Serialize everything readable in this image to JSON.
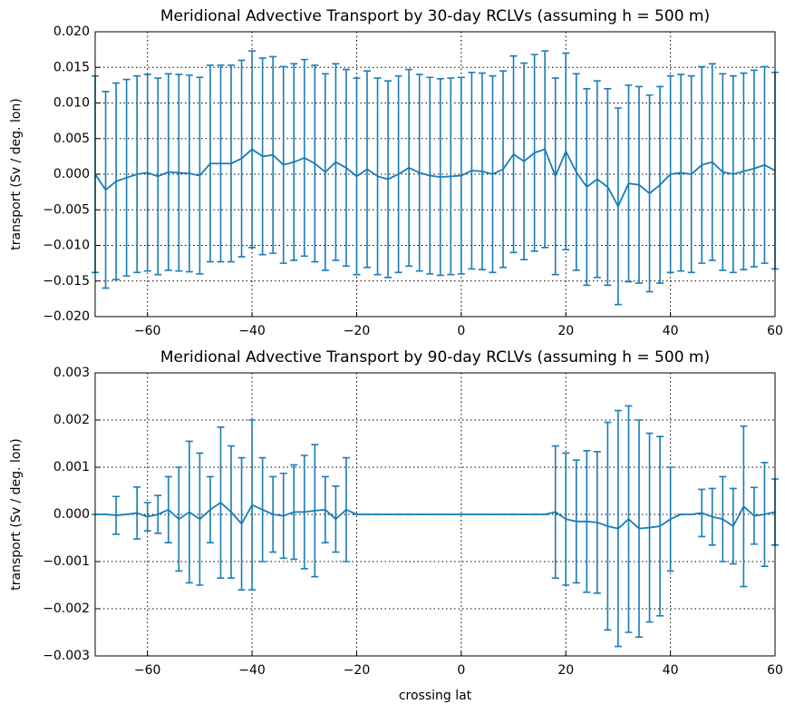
{
  "chart_data": [
    {
      "type": "errorbar",
      "title": "Meridional Advective Transport by 30-day RCLVs (assuming h = 500 m)",
      "ylabel": "transport (Sv / deg. lon)",
      "color": "#1a7db5",
      "grid": true,
      "x": [
        -70,
        -68,
        -66,
        -64,
        -62,
        -60,
        -58,
        -56,
        -54,
        -52,
        -50,
        -48,
        -46,
        -44,
        -42,
        -40,
        -38,
        -36,
        -34,
        -32,
        -30,
        -28,
        -26,
        -24,
        -22,
        -20,
        -18,
        -16,
        -14,
        -12,
        -10,
        -8,
        -6,
        -4,
        -2,
        0,
        2,
        4,
        6,
        8,
        10,
        12,
        14,
        16,
        18,
        20,
        22,
        24,
        26,
        28,
        30,
        32,
        34,
        36,
        38,
        40,
        42,
        44,
        46,
        48,
        50,
        52,
        54,
        56,
        58,
        60
      ],
      "values": [
        0.0,
        -0.0022,
        -0.001,
        -0.0005,
        0.0,
        0.0002,
        -0.0003,
        0.0003,
        0.0002,
        0.0001,
        -0.0002,
        0.0015,
        0.0015,
        0.0015,
        0.0022,
        0.0035,
        0.0025,
        0.0027,
        0.0013,
        0.0017,
        0.0023,
        0.0015,
        0.0003,
        0.0017,
        0.0009,
        -0.0003,
        0.0007,
        -0.0003,
        -0.0007,
        0.0,
        0.0009,
        0.0002,
        -0.0002,
        -0.0004,
        -0.0003,
        -0.0002,
        0.0005,
        0.0004,
        0.0,
        0.0007,
        0.0028,
        0.0018,
        0.003,
        0.0035,
        -0.0003,
        0.0032,
        0.0003,
        -0.0018,
        -0.0007,
        -0.0018,
        -0.0045,
        -0.0013,
        -0.0015,
        -0.0027,
        -0.0015,
        0.0,
        0.0002,
        0.0,
        0.0013,
        0.0017,
        0.0003,
        0.0,
        0.0004,
        0.0008,
        0.0013,
        0.0005
      ],
      "errors": [
        0.0138,
        0.0138,
        0.0138,
        0.0138,
        0.0138,
        0.0138,
        0.0138,
        0.0138,
        0.0138,
        0.0138,
        0.0138,
        0.0138,
        0.0138,
        0.0138,
        0.0138,
        0.0138,
        0.0138,
        0.0138,
        0.0138,
        0.0138,
        0.0138,
        0.0138,
        0.0138,
        0.0138,
        0.0138,
        0.0138,
        0.0138,
        0.0138,
        0.0138,
        0.0138,
        0.0138,
        0.0138,
        0.0138,
        0.0138,
        0.0138,
        0.0138,
        0.0138,
        0.0138,
        0.0138,
        0.0138,
        0.0138,
        0.0138,
        0.0138,
        0.0138,
        0.0138,
        0.0138,
        0.0138,
        0.0138,
        0.0138,
        0.0138,
        0.0138,
        0.0138,
        0.0138,
        0.0138,
        0.0138,
        0.0138,
        0.0138,
        0.0138,
        0.0138,
        0.0138,
        0.0138,
        0.0138,
        0.0138,
        0.0138,
        0.0138,
        0.0138
      ],
      "xlim": [
        -70,
        60
      ],
      "xticks": [
        {
          "value": -60,
          "label": "−60"
        },
        {
          "value": -40,
          "label": "−40"
        },
        {
          "value": -20,
          "label": "−20"
        },
        0,
        20,
        40,
        60
      ],
      "ylim": [
        -0.02,
        0.02
      ],
      "yticks": [
        {
          "value": -0.02,
          "label": "−0.020"
        },
        {
          "value": -0.015,
          "label": "−0.015"
        },
        {
          "value": -0.01,
          "label": "−0.010"
        },
        {
          "value": -0.005,
          "label": "−0.005"
        },
        {
          "value": 0,
          "label": "0.000"
        },
        {
          "value": 0.005,
          "label": "0.005"
        },
        {
          "value": 0.01,
          "label": "0.010"
        },
        {
          "value": 0.015,
          "label": "0.015"
        },
        {
          "value": 0.02,
          "label": "0.020"
        }
      ]
    },
    {
      "type": "errorbar",
      "title": "Meridional Advective Transport by 90-day RCLVs (assuming h = 500 m)",
      "ylabel": "transport (Sv / deg. lon)",
      "xlabel": "crossing lat",
      "color": "#1a7db5",
      "grid": true,
      "x": [
        -70,
        -68,
        -66,
        -64,
        -62,
        -60,
        -58,
        -56,
        -54,
        -52,
        -50,
        -48,
        -46,
        -44,
        -42,
        -40,
        -38,
        -36,
        -34,
        -32,
        -30,
        -28,
        -26,
        -24,
        -22,
        -20,
        -18,
        -16,
        -14,
        -12,
        -10,
        -8,
        -6,
        -4,
        -2,
        0,
        2,
        4,
        6,
        8,
        10,
        12,
        14,
        16,
        18,
        20,
        22,
        24,
        26,
        28,
        30,
        32,
        34,
        36,
        38,
        40,
        42,
        44,
        46,
        48,
        50,
        52,
        54,
        56,
        58,
        60
      ],
      "values": [
        0.0,
        0.0,
        -2e-05,
        0.0,
        3e-05,
        -5e-05,
        0.0,
        0.0001,
        -0.0001,
        5e-05,
        -0.0001,
        0.0001,
        0.00025,
        5e-05,
        -0.0002,
        0.0002,
        0.0001,
        0.0,
        -3e-05,
        5e-05,
        5e-05,
        8e-05,
        0.0001,
        -0.0001,
        0.0001,
        0,
        0,
        0,
        0,
        0,
        0,
        0,
        0,
        0,
        0,
        0,
        0,
        0,
        0,
        0,
        0,
        0,
        0,
        0,
        5e-05,
        -0.0001,
        -0.00015,
        -0.00015,
        -0.00017,
        -0.00025,
        -0.0003,
        -0.0001,
        -0.0003,
        -0.00028,
        -0.00025,
        -0.0001,
        0.0,
        0.0,
        3e-05,
        -5e-05,
        -0.0001,
        -0.00025,
        0.00017,
        -3e-05,
        0.0,
        5e-05
      ],
      "errors": [
        0,
        0,
        0.0004,
        0,
        0.00055,
        0.0003,
        0.0004,
        0.0007,
        0.0011,
        0.0015,
        0.0014,
        0.0007,
        0.0016,
        0.0014,
        0.0014,
        0.0018,
        0.0011,
        0.0008,
        0.0009,
        0.001,
        0.0012,
        0.0014,
        0.0007,
        0.0007,
        0.0011,
        0,
        0,
        0,
        0,
        0,
        0,
        0,
        0,
        0,
        0,
        0,
        0,
        0,
        0,
        0,
        0,
        0,
        0,
        0,
        0.0014,
        0.0014,
        0.0013,
        0.0015,
        0.0015,
        0.0022,
        0.0025,
        0.0024,
        0.0023,
        0.002,
        0.0019,
        0.0011,
        0,
        0,
        0.0005,
        0.0006,
        0.0009,
        0.0008,
        0.0017,
        0.0006,
        0.0011,
        0.0007
      ],
      "xlim": [
        -70,
        60
      ],
      "xticks": [
        {
          "value": -60,
          "label": "−60"
        },
        {
          "value": -40,
          "label": "−40"
        },
        {
          "value": -20,
          "label": "−20"
        },
        0,
        20,
        40,
        60
      ],
      "ylim": [
        -0.003,
        0.003
      ],
      "yticks": [
        {
          "value": -0.003,
          "label": "−0.003"
        },
        {
          "value": -0.002,
          "label": "−0.002"
        },
        {
          "value": -0.001,
          "label": "−0.001"
        },
        {
          "value": 0,
          "label": "0.000"
        },
        {
          "value": 0.001,
          "label": "0.001"
        },
        {
          "value": 0.002,
          "label": "0.002"
        },
        {
          "value": 0.003,
          "label": "0.003"
        }
      ]
    }
  ]
}
